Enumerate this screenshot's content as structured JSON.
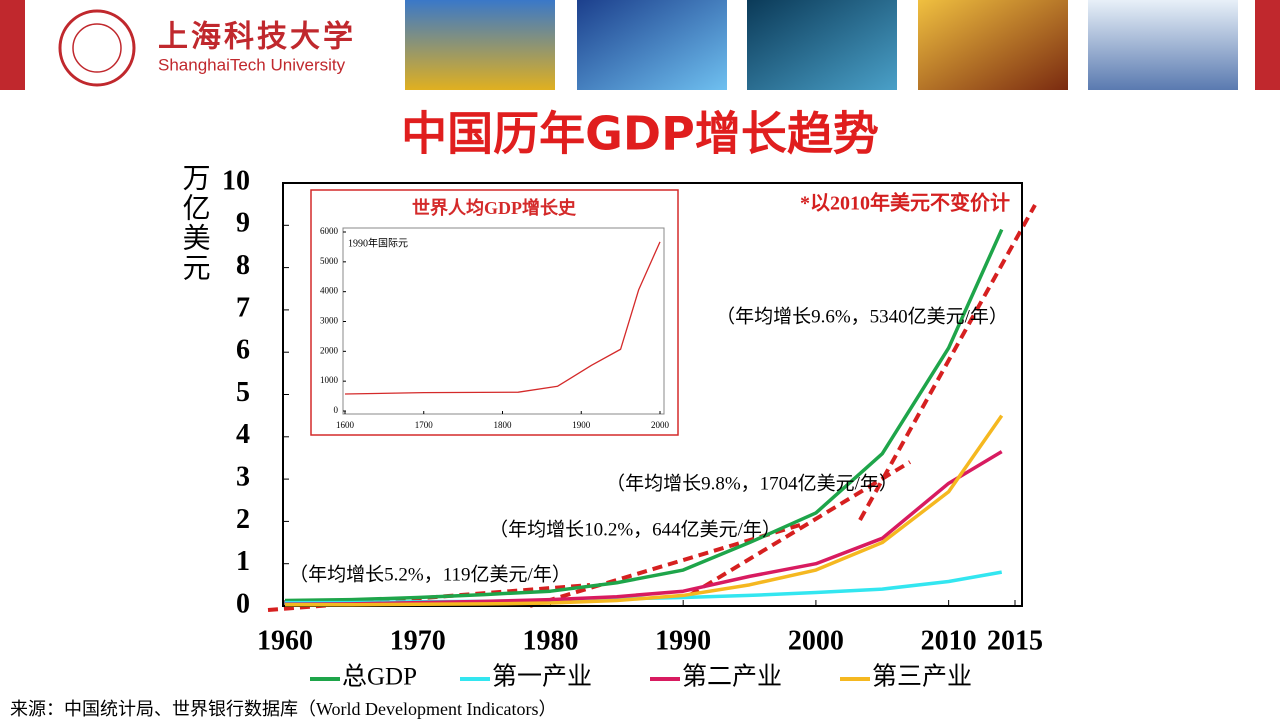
{
  "header": {
    "name_cn": "上海科技大学",
    "name_en": "ShanghaiTech University"
  },
  "source": "来源：中国统计局、世界银行数据库（World Development Indicators）",
  "chart_data": [
    {
      "type": "line",
      "title": "中国历年GDP增长趋势",
      "y_label": "万亿美元",
      "note": "*以2010年美元不变价计",
      "x": [
        1960,
        1965,
        1970,
        1975,
        1980,
        1985,
        1990,
        1995,
        2000,
        2005,
        2010,
        2014
      ],
      "series": [
        {
          "name": "总GDP",
          "color": "#1ea54a",
          "values": [
            0.13,
            0.15,
            0.2,
            0.27,
            0.35,
            0.55,
            0.85,
            1.5,
            2.2,
            3.6,
            6.1,
            8.9
          ]
        },
        {
          "name": "第一产业",
          "color": "#33e6f0",
          "values": [
            0.08,
            0.08,
            0.1,
            0.11,
            0.13,
            0.17,
            0.2,
            0.25,
            0.32,
            0.4,
            0.58,
            0.8
          ]
        },
        {
          "name": "第二产业",
          "color": "#d81b60",
          "values": [
            0.04,
            0.05,
            0.08,
            0.11,
            0.15,
            0.22,
            0.35,
            0.7,
            1.0,
            1.6,
            2.9,
            3.65
          ]
        },
        {
          "name": "第三产业",
          "color": "#f5b820",
          "values": [
            0.03,
            0.03,
            0.04,
            0.05,
            0.07,
            0.13,
            0.25,
            0.5,
            0.85,
            1.5,
            2.7,
            4.5
          ]
        }
      ],
      "annotations": [
        "（年均增长5.2%，119亿美元/年）",
        "（年均增长10.2%，644亿美元/年）",
        "（年均增长9.8%，1704亿美元/年）",
        "（年均增长9.6%，5340亿美元/年）"
      ],
      "xlim": [
        1960,
        2015
      ],
      "xticks": [
        1960,
        1970,
        1980,
        1990,
        2000,
        2010,
        2015
      ],
      "ylim": [
        0,
        10
      ],
      "yticks": [
        0,
        1,
        2,
        3,
        4,
        5,
        6,
        7,
        8,
        9,
        10
      ]
    },
    {
      "type": "line",
      "title": "世界人均GDP增长史",
      "y_label": "1990年国际元",
      "x": [
        1600,
        1700,
        1820,
        1870,
        1913,
        1950,
        1973,
        2000
      ],
      "series": [
        {
          "color": "#d42a2a",
          "values": [
            570,
            615,
            630,
            830,
            1530,
            2070,
            4070,
            5670
          ]
        }
      ],
      "xlim": [
        1600,
        2000
      ],
      "xticks": [
        1600,
        1700,
        1800,
        1900,
        2000
      ],
      "ylim": [
        0,
        6000
      ],
      "yticks": [
        0,
        1000,
        2000,
        3000,
        4000,
        5000,
        6000
      ]
    }
  ]
}
